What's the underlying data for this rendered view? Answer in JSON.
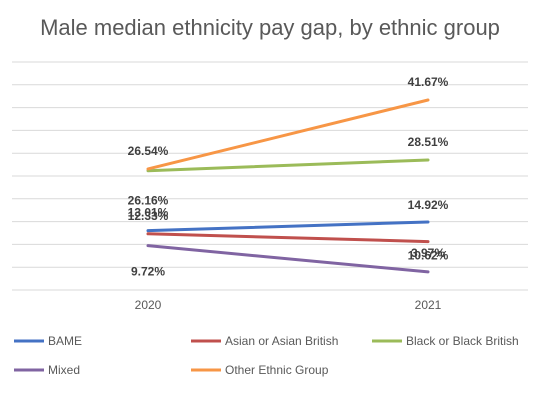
{
  "chart_data": {
    "type": "line",
    "title": "Male median ethnicity pay gap, by ethnic group",
    "categories": [
      "2020",
      "2021"
    ],
    "ylim": [
      0,
      50
    ],
    "grid": true,
    "legend_position": "bottom",
    "series": [
      {
        "name": "BAME",
        "color": "#4472c4",
        "values": [
          13.01,
          14.92
        ],
        "labels": [
          "13.01%",
          "14.92%"
        ]
      },
      {
        "name": "Asian or Asian British",
        "color": "#c0504d",
        "values": [
          12.33,
          10.62
        ],
        "labels": [
          "12.33%",
          "10.62%"
        ]
      },
      {
        "name": "Black or Black British",
        "color": "#9bbb59",
        "values": [
          26.16,
          28.51
        ],
        "labels": [
          "26.16%",
          "28.51%"
        ]
      },
      {
        "name": "Mixed",
        "color": "#8064a2",
        "values": [
          9.72,
          3.97
        ],
        "labels": [
          "9.72%",
          "3.97%"
        ]
      },
      {
        "name": "Other Ethnic Group",
        "color": "#f79646",
        "values": [
          26.54,
          41.67
        ],
        "labels": [
          "26.54%",
          "41.67%"
        ]
      }
    ]
  }
}
